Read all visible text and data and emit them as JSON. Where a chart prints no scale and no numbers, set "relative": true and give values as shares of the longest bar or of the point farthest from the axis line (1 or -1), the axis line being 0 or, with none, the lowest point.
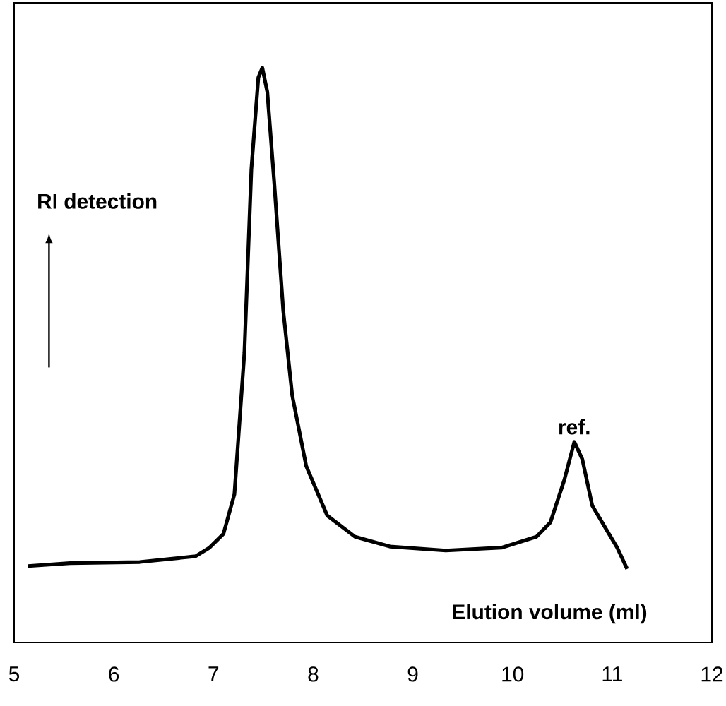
{
  "chart_data": {
    "type": "line",
    "relative": true,
    "xlabel": "Elution volume (ml)",
    "ylabel": "RI detection",
    "color": "#000000",
    "grid": false,
    "marker": "none",
    "line_style": "solid",
    "xlim": [
      5,
      12
    ],
    "xticks": [
      5,
      6,
      7,
      8,
      9,
      10,
      11,
      12
    ],
    "annotations": [
      {
        "text": "ref.",
        "x": 10.62,
        "y": 0.349
      }
    ],
    "x": [
      5.14,
      5.56,
      6.26,
      6.82,
      6.96,
      7.1,
      7.21,
      7.31,
      7.38,
      7.45,
      7.49,
      7.54,
      7.61,
      7.7,
      7.79,
      7.93,
      8.14,
      8.42,
      8.77,
      9.33,
      9.89,
      10.24,
      10.38,
      10.52,
      10.62,
      10.7,
      10.8,
      10.94,
      11.05,
      11.15
    ],
    "values": [
      0.133,
      0.138,
      0.14,
      0.15,
      0.165,
      0.189,
      0.258,
      0.504,
      0.823,
      0.983,
      1.0,
      0.958,
      0.799,
      0.577,
      0.43,
      0.307,
      0.221,
      0.184,
      0.167,
      0.16,
      0.165,
      0.184,
      0.209,
      0.283,
      0.349,
      0.319,
      0.238,
      0.197,
      0.165,
      0.128
    ]
  }
}
